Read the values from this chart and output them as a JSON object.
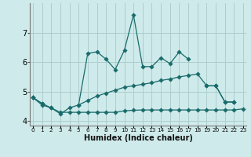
{
  "xlabel": "Humidex (Indice chaleur)",
  "background_color": "#ceeaea",
  "grid_color": "#aecece",
  "line_color": "#1a6b6b",
  "x_values": [
    0,
    1,
    2,
    3,
    4,
    5,
    6,
    7,
    8,
    9,
    10,
    11,
    12,
    13,
    14,
    15,
    16,
    17,
    18,
    19,
    20,
    21,
    22,
    23
  ],
  "line1": [
    4.8,
    4.6,
    null,
    null,
    null,
    4.55,
    6.3,
    6.35,
    6.1,
    5.75,
    6.4,
    7.6,
    5.85,
    5.85,
    6.15,
    5.95,
    6.35,
    6.1,
    null,
    5.2,
    5.2,
    4.65,
    4.65,
    null
  ],
  "line2": [
    4.8,
    4.6,
    4.45,
    4.25,
    4.45,
    4.55,
    4.7,
    4.85,
    4.95,
    5.05,
    5.15,
    5.2,
    5.25,
    5.3,
    5.38,
    5.43,
    5.5,
    5.55,
    5.6,
    5.2,
    5.2,
    4.65,
    4.65,
    null
  ],
  "line3": [
    4.8,
    4.55,
    4.45,
    4.3,
    4.3,
    4.3,
    4.3,
    4.3,
    4.3,
    4.3,
    4.35,
    4.37,
    4.38,
    4.38,
    4.38,
    4.38,
    4.38,
    4.38,
    4.38,
    4.38,
    4.38,
    4.38,
    4.38,
    4.42
  ],
  "ylim": [
    3.85,
    8.0
  ],
  "yticks": [
    4,
    5,
    6,
    7
  ],
  "xlim": [
    -0.3,
    23.3
  ]
}
